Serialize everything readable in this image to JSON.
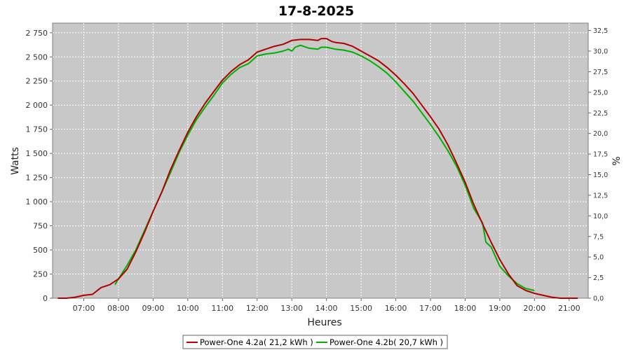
{
  "chart_data": {
    "type": "line",
    "title": "17-8-2025",
    "xlabel": "Heures",
    "ylabel": "Watts",
    "y2label": "%",
    "xlim": [
      6.1,
      21.55
    ],
    "ylim": [
      0,
      2850
    ],
    "y2lim": [
      0,
      33.4
    ],
    "x_tick_values": [
      7,
      8,
      9,
      10,
      11,
      12,
      13,
      14,
      15,
      16,
      17,
      18,
      19,
      20,
      21
    ],
    "x_tick_labels": [
      "07:00",
      "08:00",
      "09:00",
      "10:00",
      "11:00",
      "12:00",
      "13:00",
      "14:00",
      "15:00",
      "16:00",
      "17:00",
      "18:00",
      "19:00",
      "20:00",
      "21:00"
    ],
    "y_tick_values": [
      0,
      250,
      500,
      750,
      1000,
      1250,
      1500,
      1750,
      2000,
      2250,
      2500,
      2750
    ],
    "y_tick_labels": [
      "0",
      "250",
      "500",
      "750",
      "1 000",
      "1 250",
      "1 500",
      "1 750",
      "2 000",
      "2 250",
      "2 500",
      "2 750"
    ],
    "y2_tick_values": [
      0,
      2.5,
      5,
      7.5,
      10,
      12.5,
      15,
      17.5,
      20,
      22.5,
      25,
      27.5,
      30,
      32.5
    ],
    "y2_tick_labels": [
      "0,0",
      "2,5",
      "5,0",
      "7,5",
      "10,0",
      "12,5",
      "15,0",
      "17,5",
      "20,0",
      "22,5",
      "25,0",
      "27,5",
      "30,0",
      "32,5"
    ],
    "grid": true,
    "legend_position": "bottom",
    "series": [
      {
        "name": "Power-One 4.2a( 21,2 kWh )",
        "color": "#b00000",
        "x": [
          6.25,
          6.5,
          6.75,
          7.0,
          7.25,
          7.5,
          7.75,
          8.0,
          8.25,
          8.5,
          8.75,
          9.0,
          9.25,
          9.5,
          9.75,
          10.0,
          10.25,
          10.5,
          10.75,
          11.0,
          11.25,
          11.5,
          11.75,
          12.0,
          12.25,
          12.5,
          12.75,
          13.0,
          13.25,
          13.5,
          13.75,
          13.85,
          14.0,
          14.15,
          14.25,
          14.5,
          14.75,
          15.0,
          15.25,
          15.5,
          15.75,
          16.0,
          16.25,
          16.5,
          16.75,
          17.0,
          17.25,
          17.5,
          17.75,
          18.0,
          18.25,
          18.5,
          18.75,
          19.0,
          19.25,
          19.5,
          19.75,
          20.0,
          20.25,
          20.5,
          20.75,
          21.0,
          21.25
        ],
        "y": [
          0,
          0,
          10,
          30,
          40,
          110,
          140,
          200,
          300,
          480,
          680,
          900,
          1100,
          1330,
          1530,
          1720,
          1880,
          2020,
          2140,
          2260,
          2350,
          2420,
          2470,
          2550,
          2580,
          2610,
          2630,
          2670,
          2680,
          2680,
          2670,
          2690,
          2690,
          2660,
          2650,
          2640,
          2610,
          2560,
          2510,
          2460,
          2390,
          2310,
          2220,
          2120,
          2000,
          1880,
          1750,
          1590,
          1400,
          1200,
          970,
          770,
          580,
          400,
          250,
          130,
          80,
          50,
          30,
          10,
          0,
          0,
          0
        ]
      },
      {
        "name": "Power-One 4.2b( 20,7 kWh )",
        "color": "#00b000",
        "x": [
          7.9,
          8.0,
          8.25,
          8.5,
          8.75,
          9.0,
          9.25,
          9.5,
          9.75,
          10.0,
          10.25,
          10.5,
          10.75,
          11.0,
          11.25,
          11.5,
          11.75,
          12.0,
          12.25,
          12.5,
          12.75,
          12.9,
          13.0,
          13.1,
          13.25,
          13.5,
          13.75,
          13.85,
          14.0,
          14.25,
          14.5,
          14.75,
          15.0,
          15.25,
          15.5,
          15.75,
          16.0,
          16.25,
          16.5,
          16.75,
          17.0,
          17.25,
          17.5,
          17.75,
          18.0,
          18.25,
          18.5,
          18.6,
          18.75,
          19.0,
          19.25,
          19.5,
          19.75,
          20.0
        ],
        "y": [
          140,
          200,
          340,
          500,
          700,
          900,
          1100,
          1300,
          1510,
          1690,
          1850,
          1980,
          2100,
          2230,
          2320,
          2390,
          2430,
          2510,
          2530,
          2540,
          2560,
          2580,
          2560,
          2600,
          2620,
          2590,
          2580,
          2600,
          2600,
          2580,
          2570,
          2550,
          2510,
          2460,
          2400,
          2330,
          2240,
          2140,
          2040,
          1920,
          1800,
          1670,
          1530,
          1370,
          1170,
          930,
          780,
          580,
          530,
          330,
          230,
          150,
          100,
          80
        ]
      }
    ]
  }
}
